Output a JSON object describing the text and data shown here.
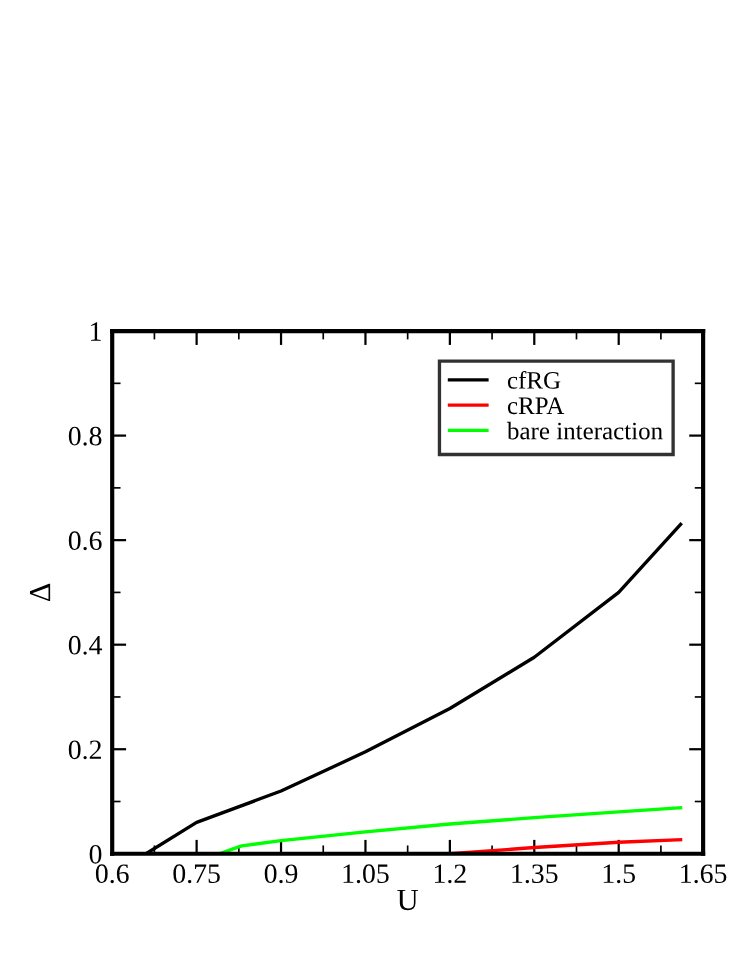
{
  "chart_data": {
    "type": "line",
    "xlabel": "U",
    "ylabel": "Δ",
    "xlim": [
      0.6,
      1.65
    ],
    "ylim": [
      0,
      1
    ],
    "xticks": [
      0.6,
      0.75,
      0.9,
      1.05,
      1.2,
      1.35,
      1.5,
      1.65
    ],
    "yticks": [
      0,
      0.2,
      0.4,
      0.6,
      0.8,
      1
    ],
    "legend": "top right",
    "grid": false,
    "marker": "none",
    "line_style": "solid",
    "series": [
      {
        "name": "cfRG",
        "color": "#000000",
        "x": [
          0.66,
          0.75,
          0.9,
          1.05,
          1.2,
          1.35,
          1.5,
          1.61
        ],
        "values": [
          0,
          0.06,
          0.12,
          0.195,
          0.278,
          0.376,
          0.5,
          0.63
        ]
      },
      {
        "name": "cRPA",
        "color": "#ff0000",
        "x": [
          1.2,
          1.35,
          1.5,
          1.61
        ],
        "values": [
          0,
          0.012,
          0.022,
          0.027
        ]
      },
      {
        "name": "bare interaction",
        "color": "#00ff00",
        "x": [
          0.79,
          0.83,
          0.9,
          1.05,
          1.2,
          1.35,
          1.5,
          1.61
        ],
        "values": [
          0,
          0.015,
          0.025,
          0.042,
          0.057,
          0.069,
          0.08,
          0.088
        ]
      }
    ]
  }
}
